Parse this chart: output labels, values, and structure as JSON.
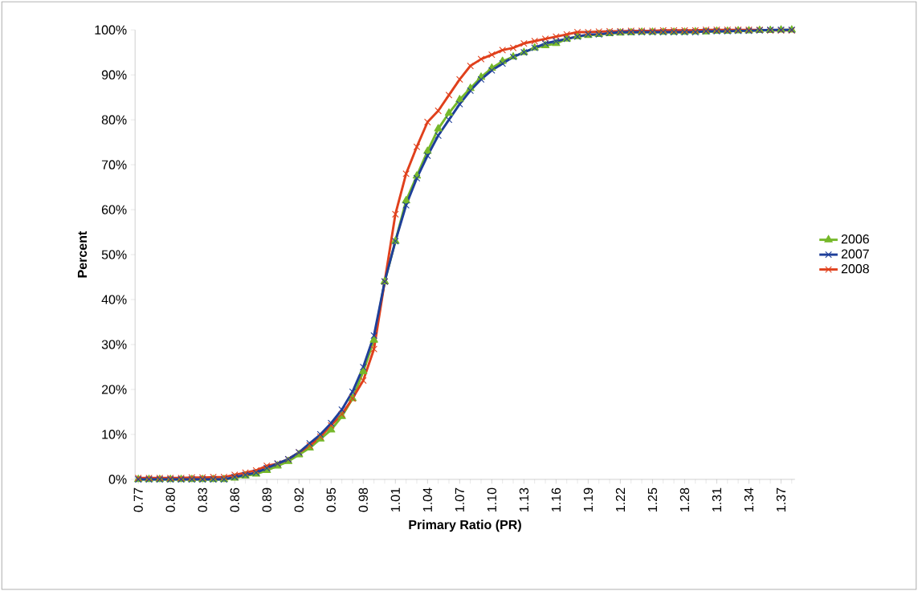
{
  "chart_data": {
    "type": "line",
    "xlabel": "Primary Ratio (PR)",
    "ylabel": "Percent",
    "categories": [
      "0.77",
      null,
      null,
      "0.80",
      null,
      null,
      "0.83",
      null,
      null,
      "0.86",
      null,
      null,
      "0.89",
      null,
      null,
      "0.92",
      null,
      null,
      "0.95",
      null,
      null,
      "0.98",
      null,
      null,
      "1.01",
      null,
      null,
      "1.04",
      null,
      null,
      "1.07",
      null,
      null,
      "1.10",
      null,
      null,
      "1.13",
      null,
      null,
      "1.16",
      null,
      null,
      "1.19",
      null,
      null,
      "1.22",
      null,
      null,
      "1.25",
      null,
      null,
      "1.28",
      null,
      null,
      "1.31",
      null,
      null,
      "1.34",
      null,
      null,
      "1.37",
      null
    ],
    "series": [
      {
        "name": "2006",
        "color": "#76b82a",
        "marker": "triangle",
        "values": [
          0,
          0,
          0,
          0,
          0,
          0,
          0,
          0,
          0,
          0.3,
          0.8,
          1.2,
          2,
          3,
          4,
          5.5,
          7,
          9,
          11,
          14,
          18,
          24,
          31,
          44,
          53,
          62,
          67.5,
          73,
          78,
          81.5,
          84.5,
          87,
          89.5,
          91.5,
          93,
          94,
          95,
          96,
          96.5,
          97,
          98,
          98.5,
          98.8,
          99,
          99.2,
          99.3,
          99.4,
          99.5,
          99.5,
          99.5,
          99.5,
          99.5,
          99.6,
          99.6,
          99.7,
          99.7,
          99.8,
          99.8,
          99.9,
          99.9,
          100,
          100
        ]
      },
      {
        "name": "2007",
        "color": "#1f3f99",
        "marker": "cross",
        "values": [
          0,
          0,
          0,
          0,
          0,
          0,
          0,
          0,
          0,
          0.5,
          1,
          1.5,
          2.5,
          3.5,
          4.5,
          6,
          8,
          10,
          12.5,
          15.5,
          19.5,
          25,
          32,
          44,
          53,
          61,
          67,
          72,
          76.5,
          80,
          83.5,
          86.5,
          89,
          91,
          92.5,
          94,
          95,
          96,
          97,
          97.5,
          98,
          98.5,
          99,
          99,
          99.3,
          99.5,
          99.5,
          99.5,
          99.5,
          99.5,
          99.5,
          99.5,
          99.5,
          99.7,
          99.7,
          99.7,
          99.8,
          99.8,
          99.9,
          100,
          100,
          100
        ]
      },
      {
        "name": "2008",
        "color": "#e0401c",
        "marker": "cross",
        "values": [
          0.3,
          0.3,
          0.3,
          0.3,
          0.3,
          0.4,
          0.4,
          0.5,
          0.5,
          1,
          1.5,
          2,
          3,
          3.5,
          4.5,
          6,
          7.5,
          9.5,
          12,
          14.5,
          18,
          22,
          29,
          44,
          59,
          68,
          74,
          79.5,
          82,
          85.5,
          89,
          92,
          93.5,
          94.5,
          95.5,
          96,
          97,
          97.5,
          98,
          98.5,
          99,
          99.5,
          99.5,
          99.6,
          99.7,
          99.7,
          99.8,
          99.8,
          99.8,
          99.9,
          99.9,
          99.9,
          99.9,
          100,
          100,
          100,
          100,
          100,
          100,
          99.9,
          99.9,
          99.9
        ]
      }
    ],
    "ylim": [
      0,
      100
    ],
    "yticks": [
      {
        "value": 0,
        "label": "0%"
      },
      {
        "value": 10,
        "label": "10%"
      },
      {
        "value": 20,
        "label": "20%"
      },
      {
        "value": 30,
        "label": "30%"
      },
      {
        "value": 40,
        "label": "40%"
      },
      {
        "value": 50,
        "label": "50%"
      },
      {
        "value": 60,
        "label": "60%"
      },
      {
        "value": 70,
        "label": "70%"
      },
      {
        "value": 80,
        "label": "80%"
      },
      {
        "value": 90,
        "label": "90%"
      },
      {
        "value": 100,
        "label": "100%"
      }
    ],
    "grid": false,
    "legend": "right",
    "line_style": "solid"
  }
}
